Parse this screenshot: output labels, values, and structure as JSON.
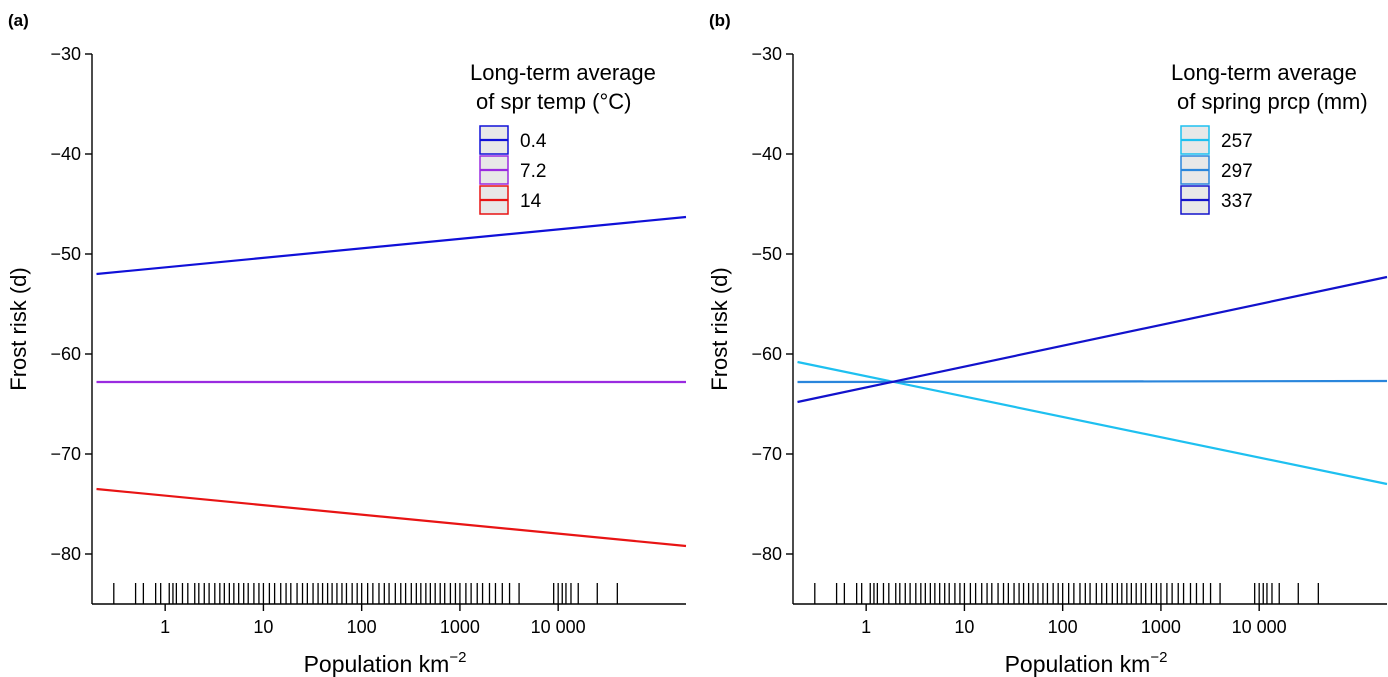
{
  "chart_data": [
    {
      "type": "line",
      "panel_label": "(a)",
      "xlabel": "Population  km",
      "xlabel_sup": "−2",
      "ylabel": "Frost risk (d)",
      "x_scale": "log",
      "xlim": [
        0.18,
        200000
      ],
      "ylim": [
        -85,
        -30
      ],
      "yticks": [
        -30,
        -40,
        -50,
        -60,
        -70,
        -80
      ],
      "ytick_labels": [
        "−30",
        "−40",
        "−50",
        "−60",
        "−70",
        "−80"
      ],
      "xticks": [
        1,
        10,
        100,
        1000,
        10000
      ],
      "xtick_labels": [
        "1",
        "10",
        "100",
        "1000",
        "10 000"
      ],
      "legend_title": [
        "Long-term average",
        "of spr temp (°C)"
      ],
      "legend_position": "top-right",
      "grid": false,
      "series": [
        {
          "name": "0.4",
          "color": "#1010d8",
          "x": [
            0.2,
            200000
          ],
          "y": [
            -52.0,
            -46.3
          ]
        },
        {
          "name": "7.2",
          "color": "#9a2be0",
          "x": [
            0.2,
            200000
          ],
          "y": [
            -62.8,
            -62.8
          ]
        },
        {
          "name": "14",
          "color": "#e81414",
          "x": [
            0.2,
            200000
          ],
          "y": [
            -73.5,
            -79.2
          ]
        }
      ],
      "rug_x": [
        0.3,
        0.5,
        0.6,
        0.8,
        0.9,
        1.1,
        1.2,
        1.3,
        1.5,
        1.7,
        2,
        2.2,
        2.5,
        2.8,
        3.2,
        3.6,
        4,
        4.5,
        5,
        5.6,
        6.3,
        7,
        8,
        9,
        10,
        11.5,
        13,
        15,
        17,
        19,
        22,
        25,
        28,
        32,
        36,
        40,
        45,
        50,
        56,
        63,
        70,
        80,
        90,
        100,
        115,
        130,
        150,
        170,
        190,
        220,
        250,
        280,
        320,
        360,
        400,
        450,
        500,
        560,
        630,
        700,
        800,
        900,
        1000,
        1150,
        1300,
        1500,
        1700,
        2000,
        2300,
        2700,
        3200,
        4000,
        9000,
        10000,
        11000,
        12000,
        13500,
        16000,
        25000,
        40000
      ]
    },
    {
      "type": "line",
      "panel_label": "(b)",
      "xlabel": "Population  km",
      "xlabel_sup": "−2",
      "ylabel": "Frost risk (d)",
      "x_scale": "log",
      "xlim": [
        0.18,
        200000
      ],
      "ylim": [
        -85,
        -30
      ],
      "yticks": [
        -30,
        -40,
        -50,
        -60,
        -70,
        -80
      ],
      "ytick_labels": [
        "−30",
        "−40",
        "−50",
        "−60",
        "−70",
        "−80"
      ],
      "xticks": [
        1,
        10,
        100,
        1000,
        10000
      ],
      "xtick_labels": [
        "1",
        "10",
        "100",
        "1000",
        "10 000"
      ],
      "legend_title": [
        "Long-term average",
        "of spring prcp (mm)"
      ],
      "legend_position": "top-right",
      "grid": false,
      "series": [
        {
          "name": "257",
          "color": "#1ec0f0",
          "x": [
            0.2,
            200000
          ],
          "y": [
            -60.8,
            -73.0
          ]
        },
        {
          "name": "297",
          "color": "#2a86dc",
          "x": [
            0.2,
            200000
          ],
          "y": [
            -62.8,
            -62.7
          ]
        },
        {
          "name": "337",
          "color": "#1212cc",
          "x": [
            0.2,
            200000
          ],
          "y": [
            -64.8,
            -52.3
          ]
        }
      ],
      "rug_x": [
        0.3,
        0.5,
        0.6,
        0.8,
        0.9,
        1.1,
        1.2,
        1.3,
        1.5,
        1.7,
        2,
        2.2,
        2.5,
        2.8,
        3.2,
        3.6,
        4,
        4.5,
        5,
        5.6,
        6.3,
        7,
        8,
        9,
        10,
        11.5,
        13,
        15,
        17,
        19,
        22,
        25,
        28,
        32,
        36,
        40,
        45,
        50,
        56,
        63,
        70,
        80,
        90,
        100,
        115,
        130,
        150,
        170,
        190,
        220,
        250,
        280,
        320,
        360,
        400,
        450,
        500,
        560,
        630,
        700,
        800,
        900,
        1000,
        1150,
        1300,
        1500,
        1700,
        2000,
        2300,
        2700,
        3200,
        4000,
        9000,
        10000,
        11000,
        12000,
        13500,
        16000,
        25000,
        40000
      ]
    }
  ]
}
